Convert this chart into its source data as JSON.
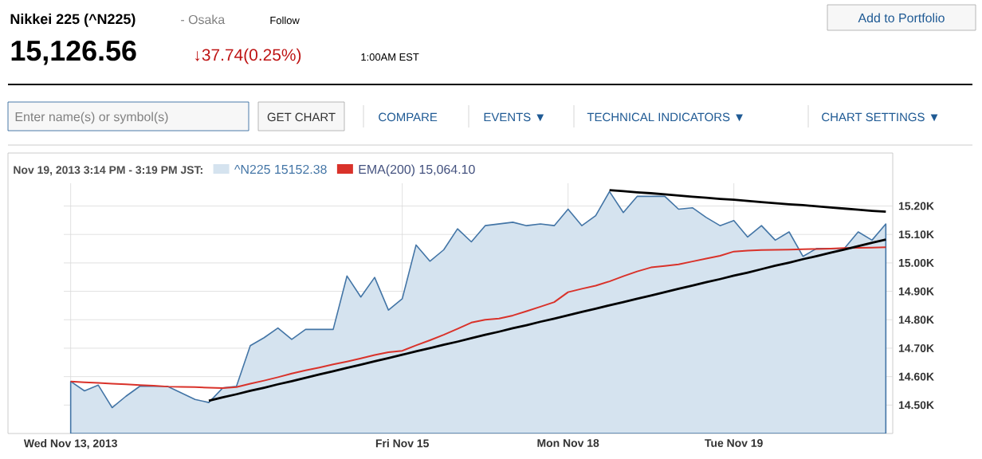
{
  "chart_data": {
    "type": "area",
    "title": "Nikkei 225 (^N225)",
    "subtitle": "- Osaka",
    "annotations": [
      "Follow",
      "15,126.56",
      "↓37.74(0.25%)",
      "1:00AM EST",
      "Add to Portfolio",
      "Enter name(s) or symbol(s)",
      "GET CHART",
      "COMPARE",
      "EVENTS ▼",
      "TECHNICAL INDICATORS ▼",
      "CHART SETTINGS ▼"
    ],
    "legend_title": "Nov 19, 2013 3:14 PM - 3:19 PM JST:",
    "legend": "top left",
    "grid": true,
    "categories": [
      "Wed Nov 13, 2013",
      null,
      null,
      null,
      null,
      null,
      null,
      null,
      null,
      null,
      null,
      null,
      null,
      null,
      null,
      null,
      null,
      null,
      null,
      null,
      null,
      null,
      null,
      null,
      "Fri Nov 15",
      null,
      null,
      null,
      null,
      null,
      null,
      null,
      null,
      null,
      null,
      null,
      "Mon Nov 18",
      null,
      null,
      null,
      null,
      null,
      null,
      null,
      null,
      null,
      null,
      null,
      "Tue Nov 19",
      null,
      null,
      null,
      null,
      null,
      null,
      null,
      null,
      null,
      null,
      null
    ],
    "ylim": [
      14400,
      15280
    ],
    "yticks": [
      {
        "value": 14500,
        "label": "14.50K"
      },
      {
        "value": 14600,
        "label": "14.60K"
      },
      {
        "value": 14700,
        "label": "14.70K"
      },
      {
        "value": 14800,
        "label": "14.80K"
      },
      {
        "value": 14900,
        "label": "14.90K"
      },
      {
        "value": 15000,
        "label": "15.00K"
      },
      {
        "value": 15100,
        "label": "15.10K"
      },
      {
        "value": 15200,
        "label": "15.20K"
      }
    ],
    "series": [
      {
        "name": "^N225 15152.38",
        "color": "#d5e3ef",
        "values": [
          14583,
          14550,
          14570,
          14491,
          14531,
          14566,
          14566,
          14566,
          14543,
          14520,
          14509,
          14560,
          14566,
          14709,
          14737,
          14771,
          14731,
          14766,
          14766,
          14766,
          14954,
          14880,
          14949,
          14834,
          14874,
          15063,
          15006,
          15046,
          15120,
          15074,
          15131,
          15137,
          15143,
          15131,
          15137,
          15131,
          15189,
          15131,
          15166,
          15251,
          15177,
          15234,
          15234,
          15234,
          15189,
          15194,
          15160,
          15131,
          15149,
          15091,
          15131,
          15080,
          15109,
          15023,
          15051,
          15051,
          15051,
          15109,
          15080,
          15137
        ]
      },
      {
        "type": "line",
        "name": "EMA(200) 15,064.10",
        "color": "#d9322a",
        "values": [
          14583,
          14580,
          14578,
          14575,
          14573,
          14570,
          14568,
          14565,
          14564,
          14563,
          14561,
          14560,
          14563,
          14575,
          14586,
          14598,
          14611,
          14622,
          14632,
          14643,
          14653,
          14664,
          14676,
          14686,
          14691,
          14710,
          14728,
          14747,
          14768,
          14790,
          14800,
          14804,
          14815,
          14830,
          14846,
          14862,
          14897,
          14909,
          14920,
          14935,
          14953,
          14970,
          14984,
          14989,
          14995,
          15005,
          15015,
          15025,
          15040,
          15043,
          15045,
          15046,
          15047,
          15048,
          15049,
          15050,
          15052,
          15053,
          15054,
          15055
        ]
      },
      {
        "type": "line",
        "color": "#000000",
        "values": [
          null,
          null,
          null,
          null,
          null,
          null,
          null,
          null,
          null,
          null,
          14515,
          14527,
          14538,
          14550,
          14561,
          14573,
          14584,
          14596,
          14608,
          14619,
          14631,
          14642,
          14654,
          14665,
          14677,
          14689,
          14700,
          14712,
          14723,
          14735,
          14747,
          14758,
          14770,
          14781,
          14793,
          14804,
          14816,
          14828,
          14839,
          14851,
          14862,
          14874,
          14885,
          14897,
          14909,
          14920,
          14932,
          14943,
          14955,
          14966,
          14978,
          14990,
          15001,
          15013,
          15024,
          15036,
          15047,
          15059,
          15071,
          15082
        ]
      },
      {
        "type": "line",
        "color": "#000000",
        "values": [
          null,
          null,
          null,
          null,
          null,
          null,
          null,
          null,
          null,
          null,
          null,
          null,
          null,
          null,
          null,
          null,
          null,
          null,
          null,
          null,
          null,
          null,
          null,
          null,
          null,
          null,
          null,
          null,
          null,
          null,
          null,
          null,
          null,
          null,
          null,
          null,
          null,
          null,
          null,
          15256,
          15252,
          15248,
          15245,
          15241,
          15237,
          15233,
          15229,
          15225,
          15222,
          15218,
          15214,
          15210,
          15206,
          15203,
          15199,
          15195,
          15191,
          15187,
          15183,
          15180
        ]
      }
    ]
  }
}
